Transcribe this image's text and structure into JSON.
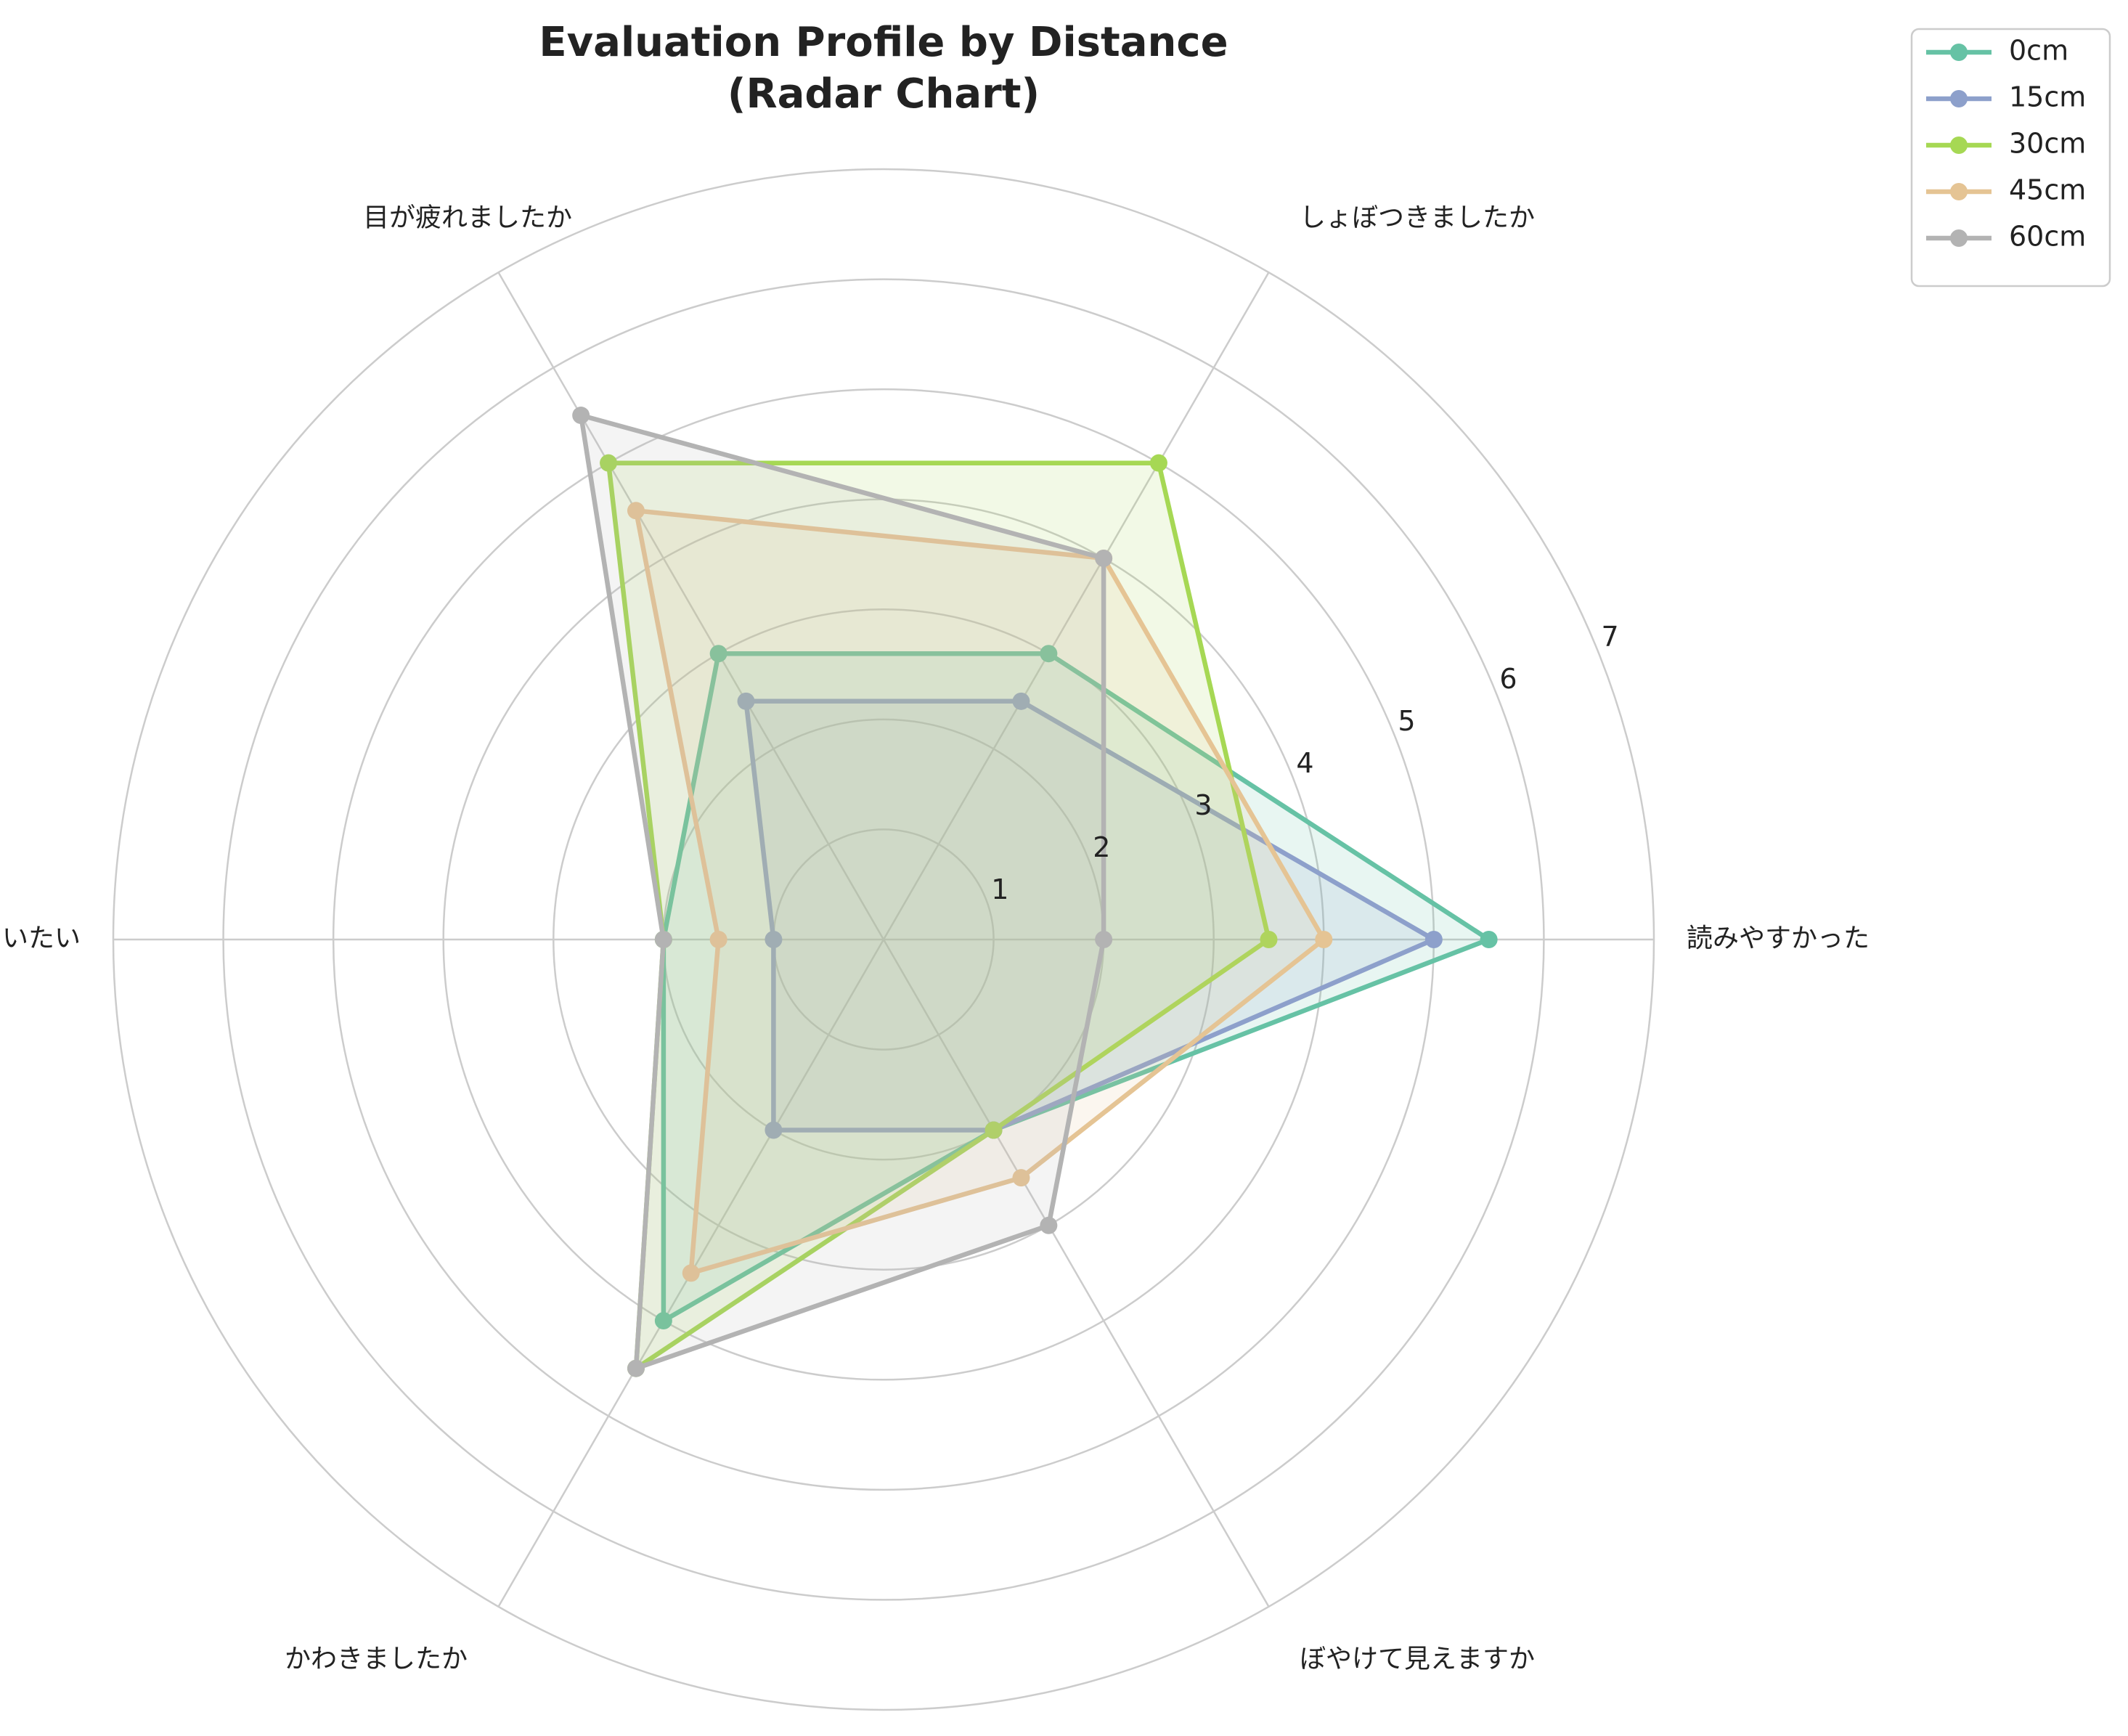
{
  "chart_data": {
    "type": "radar",
    "title_line1": "Evaluation Profile by Distance",
    "title_line2": "(Radar Chart)",
    "categories": [
      "読みやすかった",
      "しょぼつきましたか",
      "目が疲れましたか",
      "いたい",
      "かわきましたか",
      "ぼやけて見えますか"
    ],
    "rlim": [
      0,
      7
    ],
    "rticks": [
      1,
      2,
      3,
      4,
      5,
      6,
      7
    ],
    "grid": true,
    "legend_position": "top-right, outside plot",
    "series": [
      {
        "name": "0cm",
        "color": "#66c2a5",
        "values": [
          5.5,
          3.0,
          3.0,
          2.0,
          4.0,
          2.0
        ]
      },
      {
        "name": "15cm",
        "color": "#8da0cb",
        "values": [
          5.0,
          2.5,
          2.5,
          1.0,
          2.0,
          2.0
        ]
      },
      {
        "name": "30cm",
        "color": "#a6d854",
        "values": [
          3.5,
          5.0,
          5.0,
          2.0,
          4.5,
          2.0
        ]
      },
      {
        "name": "45cm",
        "color": "#e5c494",
        "values": [
          4.0,
          4.0,
          4.5,
          1.5,
          3.5,
          2.5
        ]
      },
      {
        "name": "60cm",
        "color": "#b3b3b3",
        "values": [
          2.0,
          4.0,
          5.5,
          2.0,
          4.5,
          3.0
        ]
      }
    ]
  }
}
